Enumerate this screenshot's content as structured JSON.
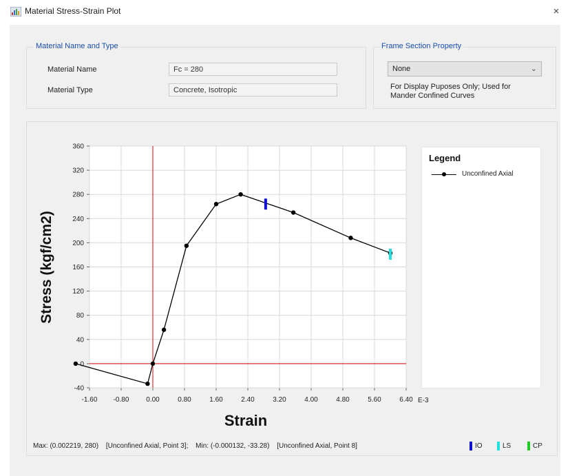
{
  "window": {
    "title": "Material Stress-Strain Plot",
    "close_glyph": "×",
    "icon": "chart-app-icon"
  },
  "material": {
    "group_title": "Material Name and Type",
    "name_label": "Material Name",
    "name_value": "Fc = 280",
    "type_label": "Material Type",
    "type_value": "Concrete, Isotropic"
  },
  "frame_section": {
    "group_title": "Frame Section Property",
    "selected": "None",
    "note_line1": "For Display Puposes Only;  Used for",
    "note_line2": "Mander Confined Curves"
  },
  "chart_data": {
    "type": "line",
    "title": "",
    "xlabel": "Strain",
    "ylabel": "Stress (kgf/cm2)",
    "x_unit_suffix": "E-3",
    "xlim": [
      -1.6,
      6.4
    ],
    "ylim": [
      -40,
      360
    ],
    "xticks": [
      "-1.60",
      "-0.80",
      "0.00",
      "0.80",
      "1.60",
      "2.40",
      "3.20",
      "4.00",
      "4.80",
      "5.60",
      "6.40"
    ],
    "yticks": [
      "360",
      "320",
      "280",
      "240",
      "200",
      "160",
      "120",
      "80",
      "40",
      "0",
      "-40"
    ],
    "grid": true,
    "axes_color": "#e03030",
    "series": [
      {
        "name": "Unconfined Axial",
        "color": "#000000",
        "x": [
          -1.95,
          -0.132,
          0.0,
          0.28,
          0.85,
          1.6,
          2.219,
          3.55,
          5.0,
          6.0
        ],
        "y": [
          0,
          -33.28,
          0,
          56,
          195,
          264,
          280,
          250,
          208,
          183
        ]
      }
    ],
    "performance_points": [
      {
        "name": "IO",
        "x": 2.85,
        "y": 264,
        "color": "#1010d0"
      },
      {
        "name": "LS",
        "x": 6.0,
        "y": 181,
        "color": "#20e0e0"
      },
      {
        "name": "CP",
        "x": null,
        "y": null,
        "color": "#20d020"
      }
    ],
    "legend": {
      "title": "Legend",
      "placement": "right",
      "entries": [
        "Unconfined Axial"
      ]
    }
  },
  "status": {
    "max_text": "Max: (0.002219, 280)",
    "max_point": "[Unconfined Axial, Point 3];",
    "min_text": "Min: (-0.000132, -33.28)",
    "min_point": "[Unconfined Axial, Point 8]",
    "io_label": "IO",
    "ls_label": "LS",
    "cp_label": "CP"
  }
}
